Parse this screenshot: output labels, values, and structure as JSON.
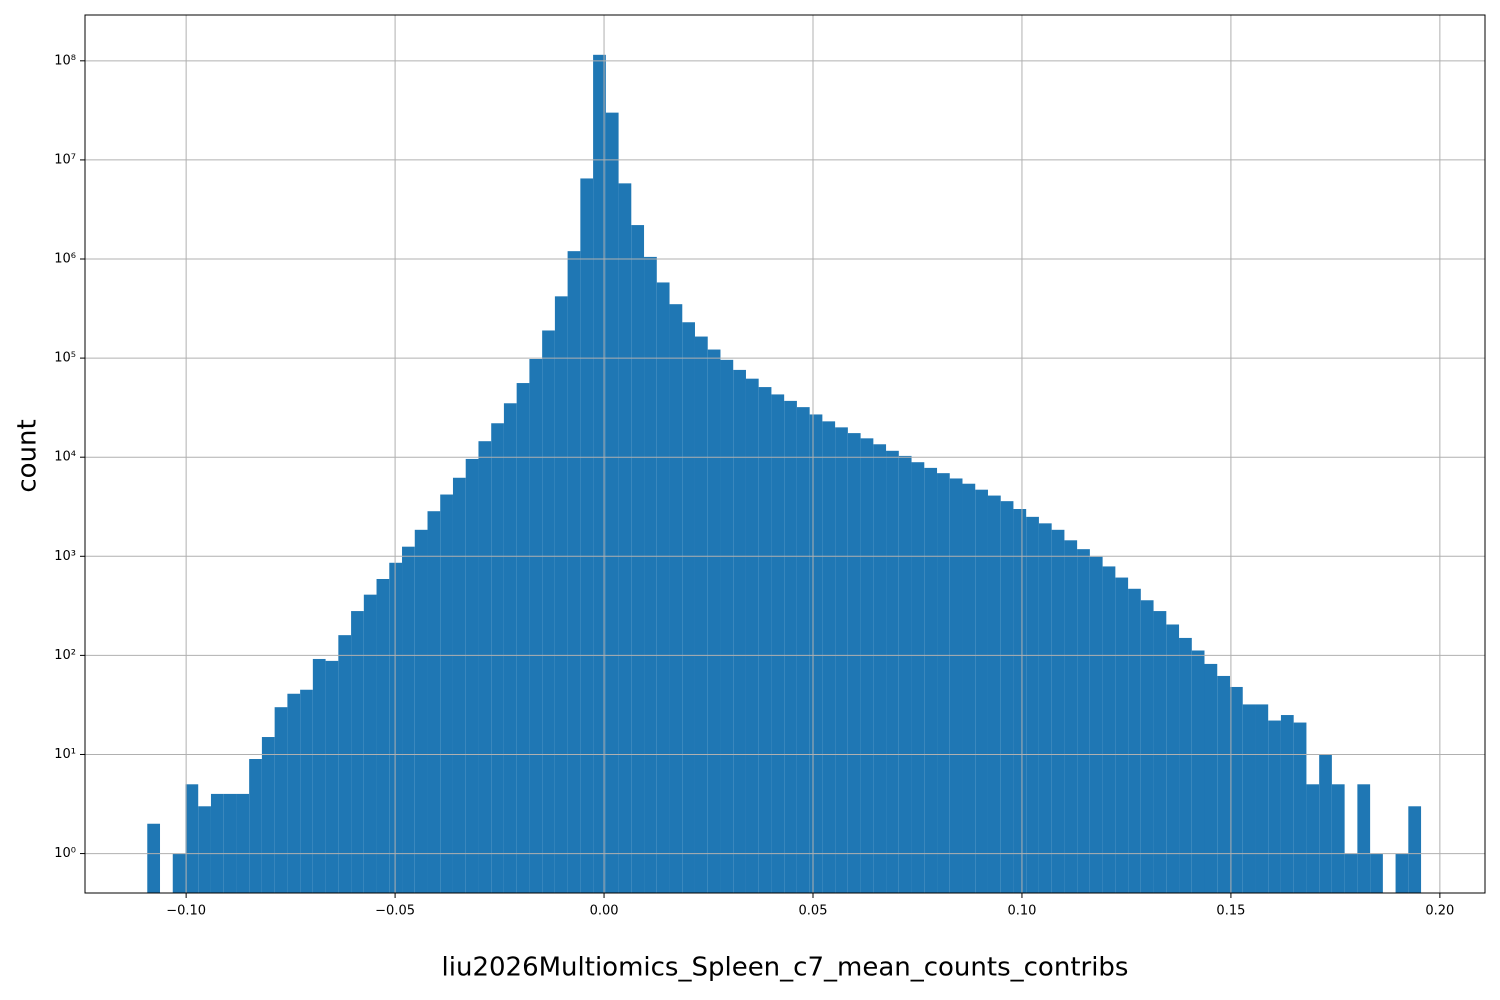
{
  "chart_data": {
    "type": "histogram",
    "xlabel": "liu2026Multiomics_Spleen_c7_mean_counts_contribs",
    "ylabel": "count",
    "color": "#1f77b4",
    "grid": true,
    "yscale": "log",
    "bins": [
      -0.1093,
      -0.10625,
      -0.1032,
      -0.10016,
      -0.09711,
      -0.09406,
      -0.09101,
      -0.08796,
      -0.08492,
      -0.08187,
      -0.07882,
      -0.07577,
      -0.07272,
      -0.06968,
      -0.06663,
      -0.06358,
      -0.06053,
      -0.05748,
      -0.05444,
      -0.05139,
      -0.04834,
      -0.04529,
      -0.04224,
      -0.0392,
      -0.03615,
      -0.0331,
      -0.03005,
      -0.027,
      -0.02396,
      -0.02091,
      -0.01786,
      -0.01481,
      -0.01176,
      -0.00872,
      -0.00567,
      -0.00262,
      0.00043,
      0.00348,
      0.00652,
      0.00957,
      0.01262,
      0.01567,
      0.01872,
      0.02176,
      0.02481,
      0.02786,
      0.03091,
      0.03396,
      0.037,
      0.04005,
      0.0431,
      0.04615,
      0.0492,
      0.05224,
      0.05529,
      0.05834,
      0.06139,
      0.06444,
      0.06748,
      0.07053,
      0.07358,
      0.07663,
      0.07968,
      0.08272,
      0.08577,
      0.08882,
      0.09187,
      0.09492,
      0.09796,
      0.10101,
      0.10406,
      0.10711,
      0.11016,
      0.1132,
      0.11625,
      0.1193,
      0.12235,
      0.1254,
      0.12844,
      0.13149,
      0.13454,
      0.13759,
      0.14064,
      0.14368,
      0.14673,
      0.14978,
      0.15283,
      0.15588,
      0.15892,
      0.16197,
      0.16502,
      0.16807,
      0.17112,
      0.17416,
      0.17721,
      0.18026,
      0.18331,
      0.18636,
      0.1894,
      0.19245,
      0.1955
    ],
    "values": [
      2,
      0,
      1,
      5,
      3,
      4,
      4,
      4,
      9,
      15,
      30,
      41,
      45,
      92,
      88,
      160,
      280,
      410,
      590,
      860,
      1250,
      1850,
      2850,
      4200,
      6200,
      9600,
      14500,
      22000,
      35000,
      56000,
      98000,
      190000,
      420000,
      1200000,
      6500000,
      115000000,
      30000000,
      5800000,
      2200000,
      1050000,
      580000,
      350000,
      230000,
      165000,
      122000,
      96000,
      76000,
      62000,
      51000,
      43000,
      37000,
      32000,
      27000,
      23000,
      20000,
      17500,
      15500,
      13500,
      11600,
      10300,
      8900,
      7800,
      6900,
      6100,
      5400,
      4700,
      4100,
      3600,
      3000,
      2500,
      2150,
      1850,
      1450,
      1180,
      990,
      790,
      610,
      470,
      360,
      280,
      205,
      150,
      112,
      82,
      62,
      48,
      32,
      32,
      22,
      25,
      21,
      5,
      10,
      5,
      1,
      5,
      1,
      0,
      1,
      3
    ],
    "xlim": [
      -0.1242,
      0.2108
    ],
    "xticks": [
      {
        "value": -0.1,
        "label": "−0.10"
      },
      {
        "value": -0.05,
        "label": "−0.05"
      },
      {
        "value": 0,
        "label": "0.00"
      },
      0.05,
      {
        "value": 0.1,
        "label": "0.10"
      },
      0.15,
      {
        "value": 0.2,
        "label": "0.20"
      }
    ],
    "ylim": [
      0.4,
      290000000
    ],
    "yticks": [
      {
        "value": 1,
        "label": "10⁰"
      },
      {
        "value": 10,
        "label": "10¹"
      },
      {
        "value": 100,
        "label": "10²"
      },
      {
        "value": 1000,
        "label": "10³"
      },
      {
        "value": 10000,
        "label": "10⁴"
      },
      {
        "value": 100000,
        "label": "10⁵"
      },
      {
        "value": 1000000,
        "label": "10⁶"
      },
      {
        "value": 10000000,
        "label": "10⁷"
      },
      {
        "value": 100000000,
        "label": "10⁸"
      }
    ]
  }
}
